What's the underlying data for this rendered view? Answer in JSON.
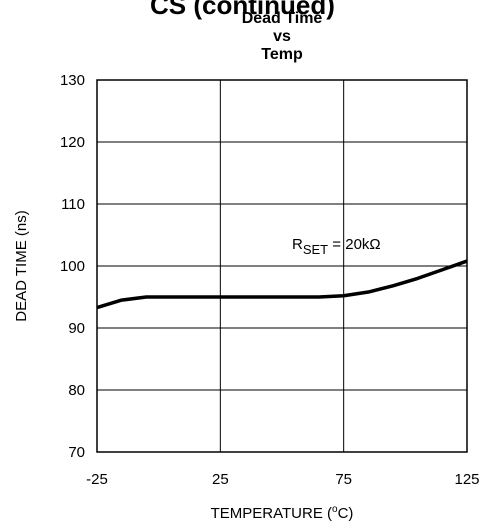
{
  "header": "CS (continued)",
  "chart_data": {
    "type": "line",
    "title_lines": [
      "Dead Time",
      "vs",
      "Temp"
    ],
    "x_label": {
      "before": "TEMPERATURE (",
      "sup": "o",
      "after": "C)"
    },
    "y_label": "DEAD TIME (ns)",
    "annotation": {
      "main": "R",
      "sub": "SET",
      "rest": " = 20kΩ"
    },
    "x": [
      -25,
      -15,
      -5,
      0,
      25,
      50,
      65,
      75,
      85,
      95,
      105,
      115,
      125
    ],
    "series": [
      {
        "name": "Dead Time",
        "color": "#000000",
        "values": [
          93.3,
          94.5,
          95,
          95,
          95,
          95,
          95,
          95.2,
          95.8,
          96.8,
          98,
          99.4,
          100.8
        ]
      }
    ],
    "xlim": [
      -25,
      125
    ],
    "xticks": [
      -25,
      25,
      75,
      125
    ],
    "ylim": [
      70,
      130
    ],
    "yticks": [
      70,
      80,
      90,
      100,
      110,
      120,
      130
    ],
    "grid": true
  }
}
